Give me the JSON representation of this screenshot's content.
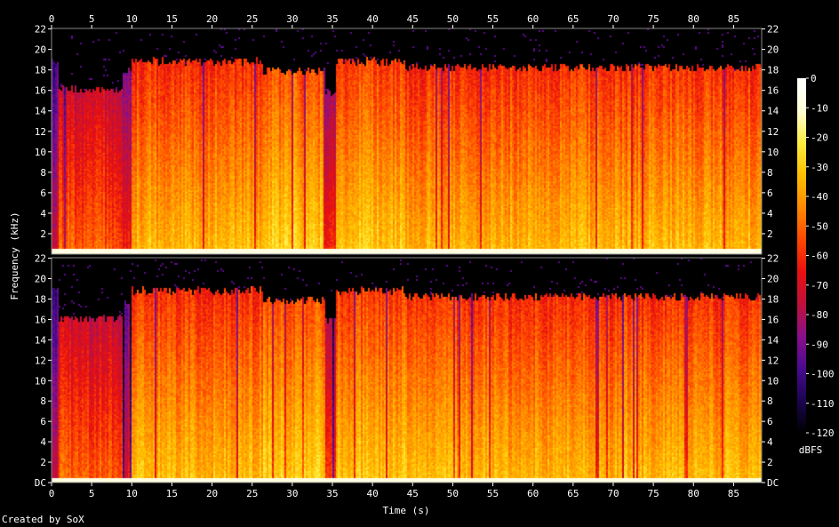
{
  "chart_data": {
    "type": "heatmap",
    "subtype": "spectrogram",
    "xlabel": "Time (s)",
    "ylabel": "Frequency (kHz)",
    "x_ticks": [
      "0",
      "5",
      "10",
      "15",
      "20",
      "25",
      "30",
      "35",
      "40",
      "45",
      "50",
      "55",
      "60",
      "65",
      "70",
      "75",
      "80",
      "85"
    ],
    "y_ticks_top": [
      "22",
      "20",
      "18",
      "16",
      "14",
      "12",
      "10",
      "8",
      "6",
      "4",
      "2"
    ],
    "y_ticks_bottom": [
      "22",
      "20",
      "18",
      "16",
      "14",
      "12",
      "10",
      "8",
      "6",
      "4",
      "2",
      "DC"
    ],
    "xlim": [
      0,
      88.5
    ],
    "ylim_khz": [
      0,
      22.05
    ],
    "channels": 2,
    "colorbar": {
      "label": "dBFS",
      "range": [
        -120,
        0
      ],
      "ticks": [
        "0",
        "-10",
        "-20",
        "-30",
        "-40",
        "-50",
        "-60",
        "-70",
        "-80",
        "-90",
        "-100",
        "-110",
        "-120"
      ],
      "stops": [
        "#000000",
        "#1a0550",
        "#4a0a90",
        "#8a0f8a",
        "#c0103a",
        "#e81010",
        "#ff4800",
        "#ff8a00",
        "#ffc000",
        "#ffee40",
        "#ffffd8",
        "#ffffff"
      ]
    },
    "segments_time_s": [
      {
        "start": 0,
        "end": 0.8,
        "level_db": -95,
        "cutoff_khz": 19
      },
      {
        "start": 0.8,
        "end": 8.8,
        "level_db": -72,
        "cutoff_khz": 16.2
      },
      {
        "start": 8.8,
        "end": 9.8,
        "level_db": -88,
        "cutoff_khz": 18
      },
      {
        "start": 9.8,
        "end": 26.2,
        "level_db": -55,
        "cutoff_khz": 18.9
      },
      {
        "start": 26.2,
        "end": 34,
        "level_db": -50,
        "cutoff_khz": 18
      },
      {
        "start": 34,
        "end": 35.3,
        "level_db": -80,
        "cutoff_khz": 16
      },
      {
        "start": 35.3,
        "end": 44,
        "level_db": -52,
        "cutoff_khz": 18.9
      },
      {
        "start": 44,
        "end": 88.5,
        "level_db": -55,
        "cutoff_khz": 18.3
      }
    ]
  },
  "footer": {
    "credit": "Created by SoX"
  }
}
